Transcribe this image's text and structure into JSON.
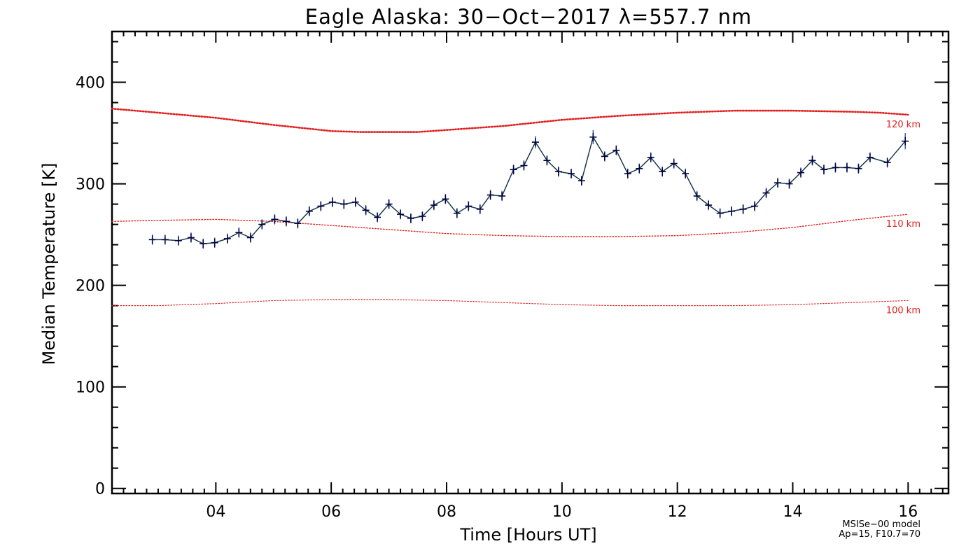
{
  "chart_data": {
    "type": "line",
    "title": "Eagle Alaska: 30−Oct−2017 λ=557.7 nm",
    "xlabel": "Time [Hours UT]",
    "ylabel": "Median Temperature [K]",
    "xlim": [
      2.2,
      16.7
    ],
    "ylim": [
      -5,
      450
    ],
    "xticks": [
      4,
      6,
      8,
      10,
      12,
      14,
      16
    ],
    "xtick_labels": [
      "04",
      "06",
      "08",
      "10",
      "12",
      "14",
      "16"
    ],
    "yticks": [
      0,
      100,
      200,
      300,
      400
    ],
    "ytick_labels": [
      "0",
      "100",
      "200",
      "300",
      "400"
    ],
    "grid": false,
    "colors": {
      "data_line": "#1a3a4a",
      "data_marker": "#000040",
      "error_bar": "#2a5aa0",
      "model_line": "#e02020",
      "model_text": "#e02020"
    },
    "series": [
      {
        "x": [
          2.9,
          3.12,
          3.35,
          3.57,
          3.78,
          3.98,
          4.2,
          4.4,
          4.6,
          4.8,
          5.02,
          5.22,
          5.42,
          5.62,
          5.82,
          6.02,
          6.22,
          6.42,
          6.6,
          6.8,
          7.0,
          7.2,
          7.38,
          7.58,
          7.78,
          7.98,
          8.18,
          8.38,
          8.58,
          8.76,
          8.96,
          9.16,
          9.34,
          9.54,
          9.74,
          9.94,
          10.16,
          10.34,
          10.54,
          10.74,
          10.94,
          11.14,
          11.34,
          11.54,
          11.74,
          11.94,
          12.14,
          12.34,
          12.54,
          12.74,
          12.94,
          13.14,
          13.34,
          13.54,
          13.74,
          13.94,
          14.14,
          14.34,
          14.54,
          14.74,
          14.94,
          15.14,
          15.34,
          15.64,
          15.95
        ],
        "y": [
          245,
          245,
          244,
          247,
          241,
          242,
          246,
          252,
          247,
          260,
          265,
          263,
          261,
          273,
          278,
          282,
          280,
          282,
          274,
          267,
          280,
          270,
          266,
          268,
          279,
          285,
          271,
          278,
          275,
          289,
          288,
          314,
          318,
          341,
          323,
          312,
          310,
          303,
          346,
          327,
          333,
          310,
          315,
          326,
          312,
          320,
          310,
          288,
          279,
          271,
          273,
          275,
          278,
          291,
          301,
          300,
          311,
          323,
          314,
          316,
          316,
          315,
          326,
          321,
          342
        ],
        "err": [
          5,
          5,
          5,
          5,
          5,
          5,
          5,
          5,
          5,
          5,
          5,
          5,
          5,
          5,
          5,
          5,
          5,
          5,
          5,
          5,
          5,
          5,
          5,
          5,
          5,
          5,
          5,
          5,
          5,
          5,
          5,
          5,
          5,
          6,
          5,
          5,
          5,
          5,
          7,
          5,
          5,
          5,
          5,
          5,
          5,
          5,
          5,
          5,
          5,
          5,
          5,
          5,
          5,
          5,
          5,
          5,
          5,
          5,
          5,
          5,
          5,
          5,
          5,
          5,
          8
        ]
      }
    ],
    "reference_curves": [
      {
        "label": "120 km",
        "x": [
          2.2,
          3.0,
          4.0,
          5.0,
          6.0,
          6.5,
          7.0,
          7.5,
          8.0,
          9.0,
          10.0,
          11.0,
          12.0,
          13.0,
          14.0,
          15.0,
          15.5,
          16.0
        ],
        "y": [
          374,
          370,
          365,
          358,
          352,
          351,
          351,
          351,
          353,
          357,
          363,
          367,
          370,
          372,
          372,
          371,
          370,
          368
        ]
      },
      {
        "label": "110 km",
        "x": [
          2.2,
          3.0,
          4.0,
          5.0,
          6.0,
          7.0,
          8.0,
          9.0,
          10.0,
          11.0,
          12.0,
          13.0,
          14.0,
          15.0,
          16.0
        ],
        "y": [
          263,
          264,
          265,
          263,
          259,
          255,
          251,
          249,
          248,
          248,
          249,
          252,
          257,
          264,
          270
        ]
      },
      {
        "label": "100 km",
        "x": [
          2.2,
          3.0,
          4.0,
          5.0,
          6.0,
          7.0,
          8.0,
          9.0,
          10.0,
          11.0,
          12.0,
          13.0,
          14.0,
          15.0,
          16.0
        ],
        "y": [
          180,
          180,
          182,
          185,
          186,
          186,
          185,
          183,
          181,
          180,
          180,
          180,
          181,
          183,
          185
        ]
      }
    ],
    "model_note": [
      "MSISe−00 model",
      "Ap=15, F10.7=70"
    ]
  }
}
